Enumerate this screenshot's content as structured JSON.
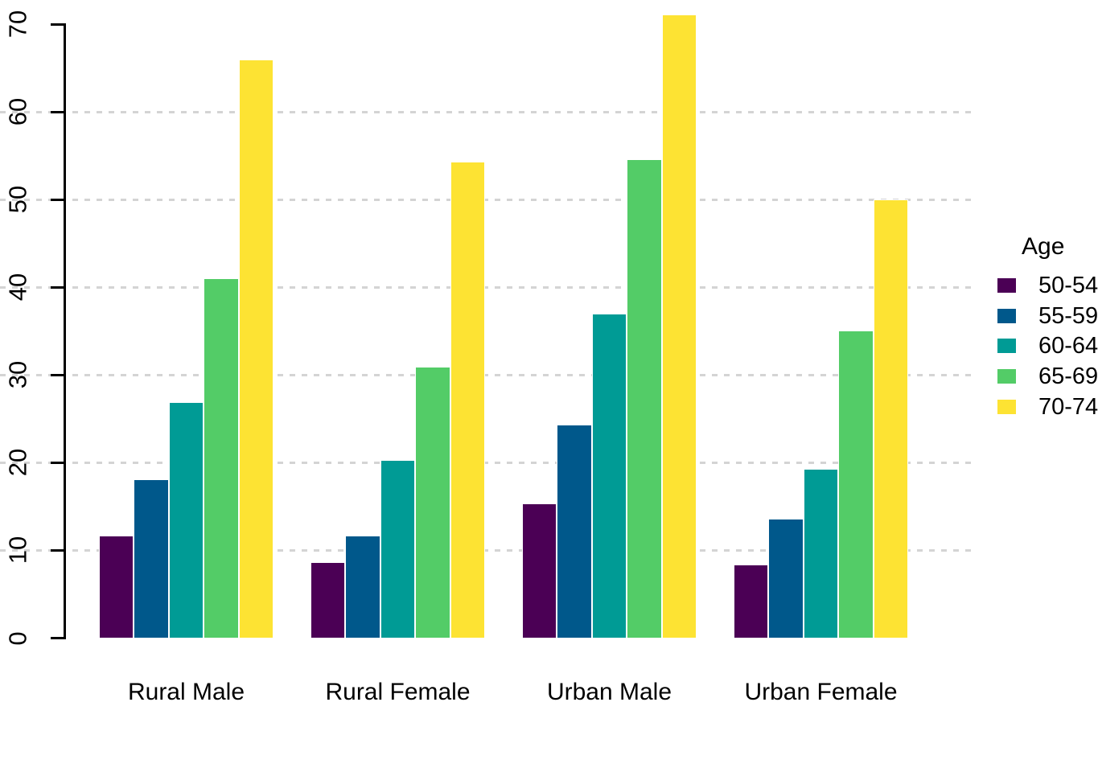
{
  "chart_data": {
    "type": "bar",
    "title": "",
    "xlabel": "",
    "ylabel": "",
    "categories": [
      "Rural Male",
      "Rural Female",
      "Urban Male",
      "Urban Female"
    ],
    "series": [
      {
        "name": "50-54",
        "color": "#4B0055",
        "values": [
          11.7,
          8.7,
          15.4,
          8.4
        ]
      },
      {
        "name": "55-59",
        "color": "#00588B",
        "values": [
          18.1,
          11.7,
          24.3,
          13.6
        ]
      },
      {
        "name": "60-64",
        "color": "#009B95",
        "values": [
          26.9,
          20.3,
          37.0,
          19.3
        ]
      },
      {
        "name": "65-69",
        "color": "#53CC67",
        "values": [
          41.0,
          30.9,
          54.6,
          35.1
        ]
      },
      {
        "name": "70-74",
        "color": "#FDE333",
        "values": [
          66.0,
          54.3,
          71.1,
          50.0
        ]
      }
    ],
    "legend": {
      "title": "Age",
      "position": "right-outside",
      "clipped_at_right_edge": true
    },
    "ylim": [
      0,
      70
    ],
    "yticks": [
      0,
      10,
      20,
      30,
      40,
      50,
      60,
      70
    ],
    "grid": {
      "visible": true,
      "style": "dashed",
      "color": "#D4D4D4",
      "at": [
        10,
        20,
        30,
        40,
        50,
        60
      ]
    },
    "bar_border_color": "#FFFFFF",
    "background": "#FFFFFF"
  }
}
